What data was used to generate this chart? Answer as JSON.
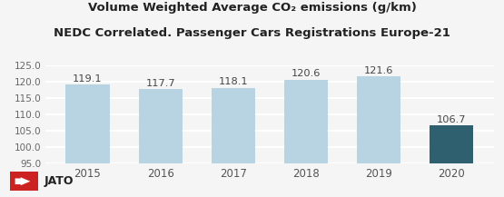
{
  "title_line1": "Volume Weighted Average CO₂ emissions (g/km)",
  "title_line2": "NEDC Correlated. Passenger Cars Registrations Europe-21",
  "categories": [
    "2015",
    "2016",
    "2017",
    "2018",
    "2019",
    "2020"
  ],
  "values": [
    119.1,
    117.7,
    118.1,
    120.6,
    121.6,
    106.7
  ],
  "bar_colors": [
    "#b8d4e3",
    "#b8d4e3",
    "#b8d4e3",
    "#b8d4e3",
    "#b8d4e3",
    "#2e6070"
  ],
  "ylim": [
    95.0,
    125.0
  ],
  "yticks": [
    95.0,
    100.0,
    105.0,
    110.0,
    115.0,
    120.0,
    125.0
  ],
  "background_color": "#f5f5f5",
  "title_fontsize": 9.5,
  "bar_label_fontsize": 8.2,
  "tick_fontsize": 7.5,
  "logo_text": "JATO",
  "logo_box_color": "#cc2222",
  "logo_fontsize": 9
}
